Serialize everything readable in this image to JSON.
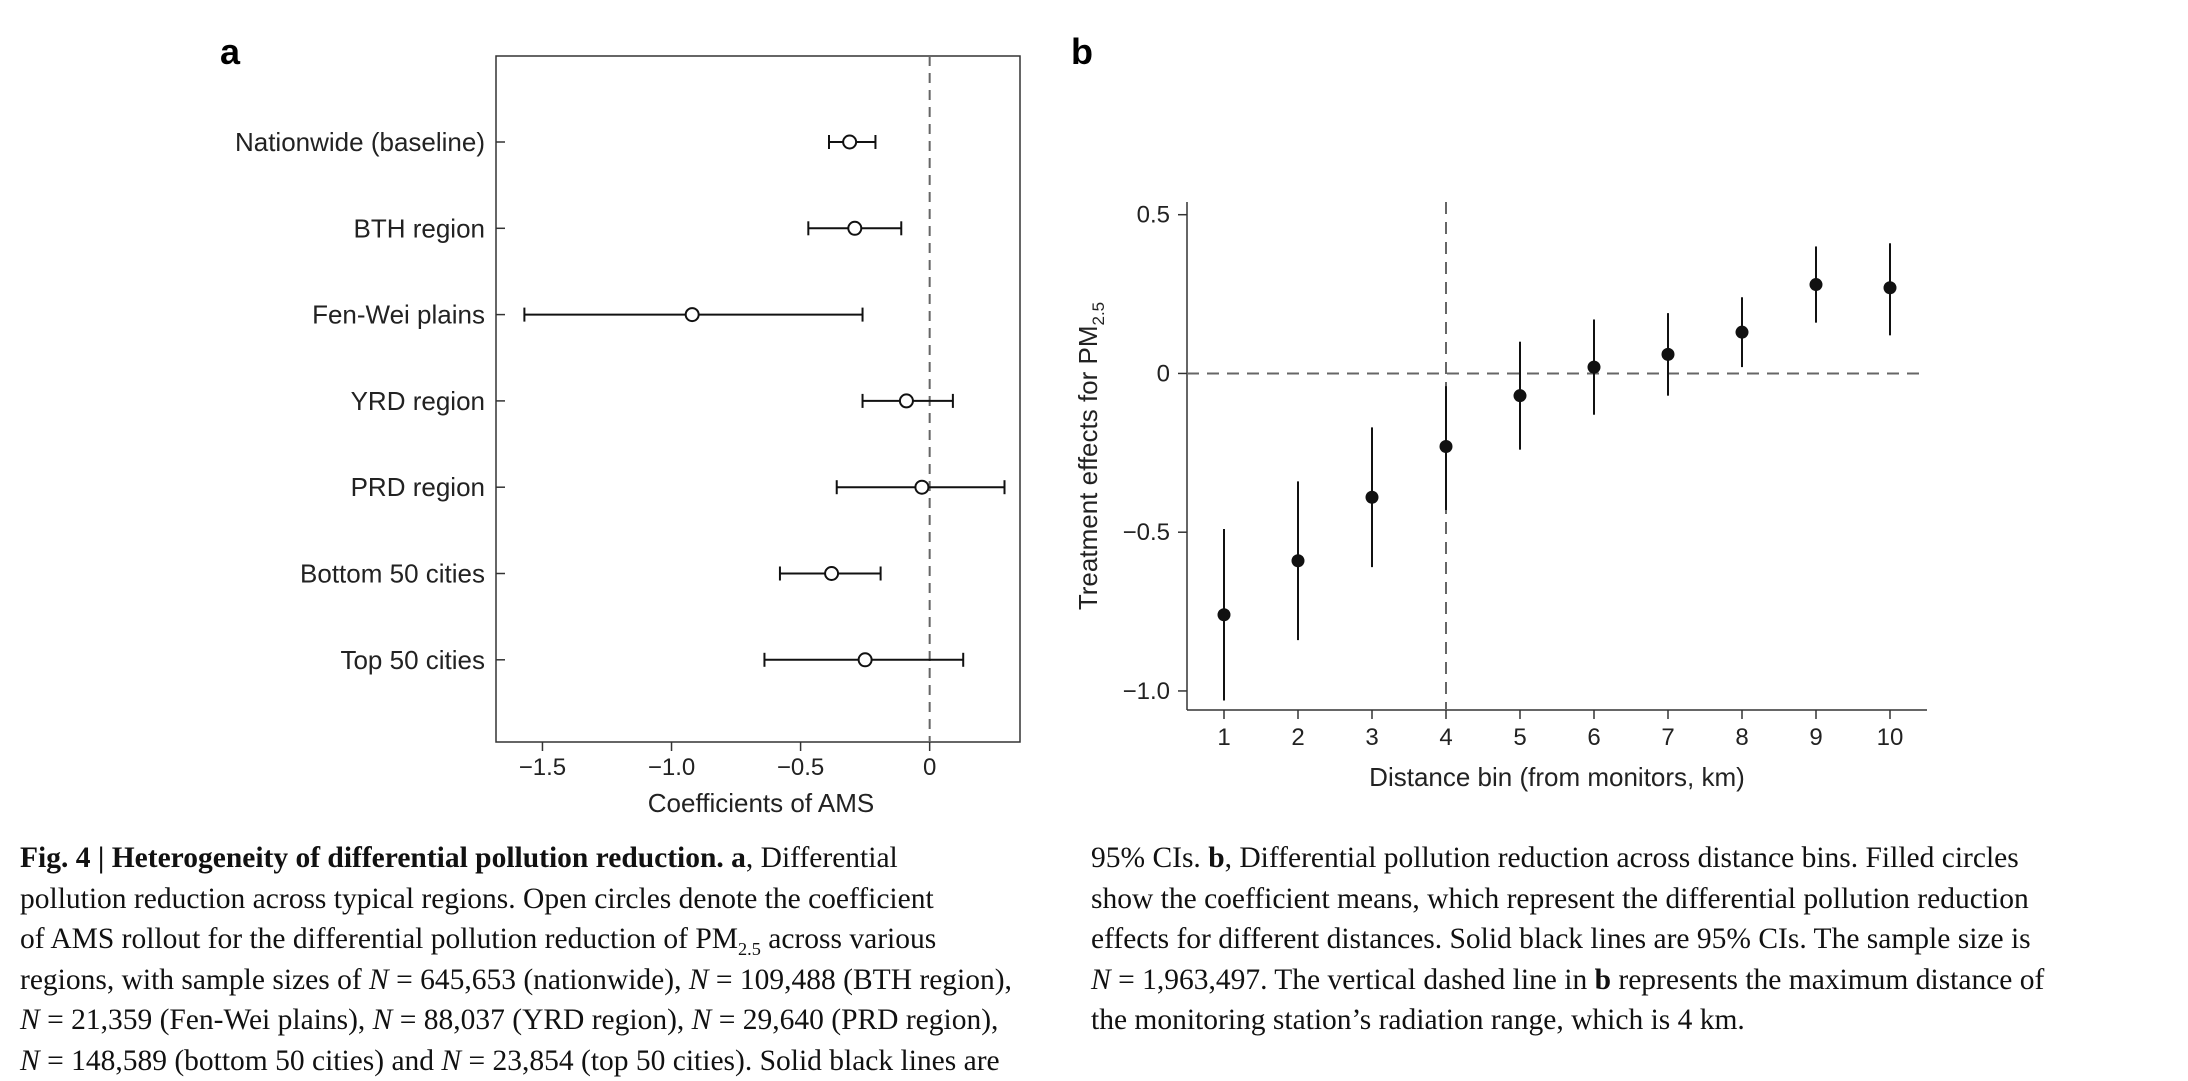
{
  "panel_a_label": "a",
  "panel_b_label": "b",
  "chart_data": [
    {
      "type": "scatter",
      "panel": "a",
      "orientation": "horizontal",
      "marker": "open-circle",
      "error_bars": "95% CI",
      "xlabel": "Coefficients of AMS",
      "xlim": [
        -1.68,
        0.35
      ],
      "xticks": [
        -1.5,
        -1.0,
        -0.5,
        0
      ],
      "xtick_labels": [
        "−1.5",
        "−1.0",
        "−0.5",
        "0"
      ],
      "reference_line": {
        "x": 0,
        "style": "dashed"
      },
      "categories": [
        "Nationwide (baseline)",
        "BTH region",
        "Fen-Wei plains",
        "YRD region",
        "PRD region",
        "Bottom 50 cities",
        "Top 50 cities"
      ],
      "values": [
        -0.31,
        -0.29,
        -0.92,
        -0.09,
        -0.03,
        -0.38,
        -0.25
      ],
      "ci_low": [
        -0.39,
        -0.47,
        -1.57,
        -0.26,
        -0.36,
        -0.58,
        -0.64
      ],
      "ci_high": [
        -0.21,
        -0.11,
        -0.26,
        0.09,
        0.29,
        -0.19,
        0.13
      ]
    },
    {
      "type": "scatter",
      "panel": "b",
      "marker": "filled-circle",
      "error_bars": "95% CI",
      "xlabel": "Distance bin (from monitors, km)",
      "ylabel_main": "Treatment effects for PM",
      "ylabel_sub": "2.5",
      "x": [
        1,
        2,
        3,
        4,
        5,
        6,
        7,
        8,
        9,
        10
      ],
      "y": [
        -0.76,
        -0.59,
        -0.39,
        -0.23,
        -0.07,
        0.02,
        0.06,
        0.13,
        0.28,
        0.27
      ],
      "ci_low": [
        -1.03,
        -0.84,
        -0.61,
        -0.43,
        -0.24,
        -0.13,
        -0.07,
        0.02,
        0.16,
        0.12
      ],
      "ci_high": [
        -0.49,
        -0.34,
        -0.17,
        -0.04,
        0.1,
        0.17,
        0.19,
        0.24,
        0.4,
        0.41
      ],
      "xlim": [
        0.5,
        10.5
      ],
      "ylim": [
        -1.06,
        0.54
      ],
      "yticks": [
        0.5,
        0,
        -0.5,
        -1.0
      ],
      "ytick_labels": [
        "0.5",
        "0",
        "−0.5",
        "−1.0"
      ],
      "reference_lines": [
        {
          "y": 0,
          "style": "dashed"
        },
        {
          "x": 4,
          "style": "dashed"
        }
      ]
    }
  ],
  "caption": {
    "figure_label": "Fig. 4",
    "separator": " | ",
    "figure_title": "Heterogeneity of differential pollution reduction.",
    "panel_a_ref": "a",
    "left_lines": [
      ", Differential",
      "pollution reduction across typical regions. Open circles denote the coefficient",
      "of AMS rollout for the differential pollution reduction of PM",
      "2.5",
      " across various",
      "regions, with sample sizes of ",
      "N",
      " = 645,653 (nationwide), ",
      "N",
      " = 109,488 (BTH region),",
      "N",
      " = 21,359 (Fen-Wei plains), ",
      "N",
      " = 88,037 (YRD region), ",
      "N",
      " = 29,640 (PRD region),",
      "N",
      " = 148,589 (bottom 50 cities) and ",
      "N",
      " = 23,854 (top 50 cities). Solid black lines are"
    ],
    "right_lines": [
      "95% CIs. ",
      "b",
      ", Differential pollution reduction across distance bins. Filled circles",
      "show the coefficient means, which represent the differential pollution reduction",
      "effects for different distances. Solid black lines are 95% CIs. The sample size is",
      "N",
      " = 1,963,497. The vertical dashed line in ",
      "b",
      " represents the maximum distance of",
      "the monitoring station’s radiation range, which is 4 km."
    ]
  }
}
